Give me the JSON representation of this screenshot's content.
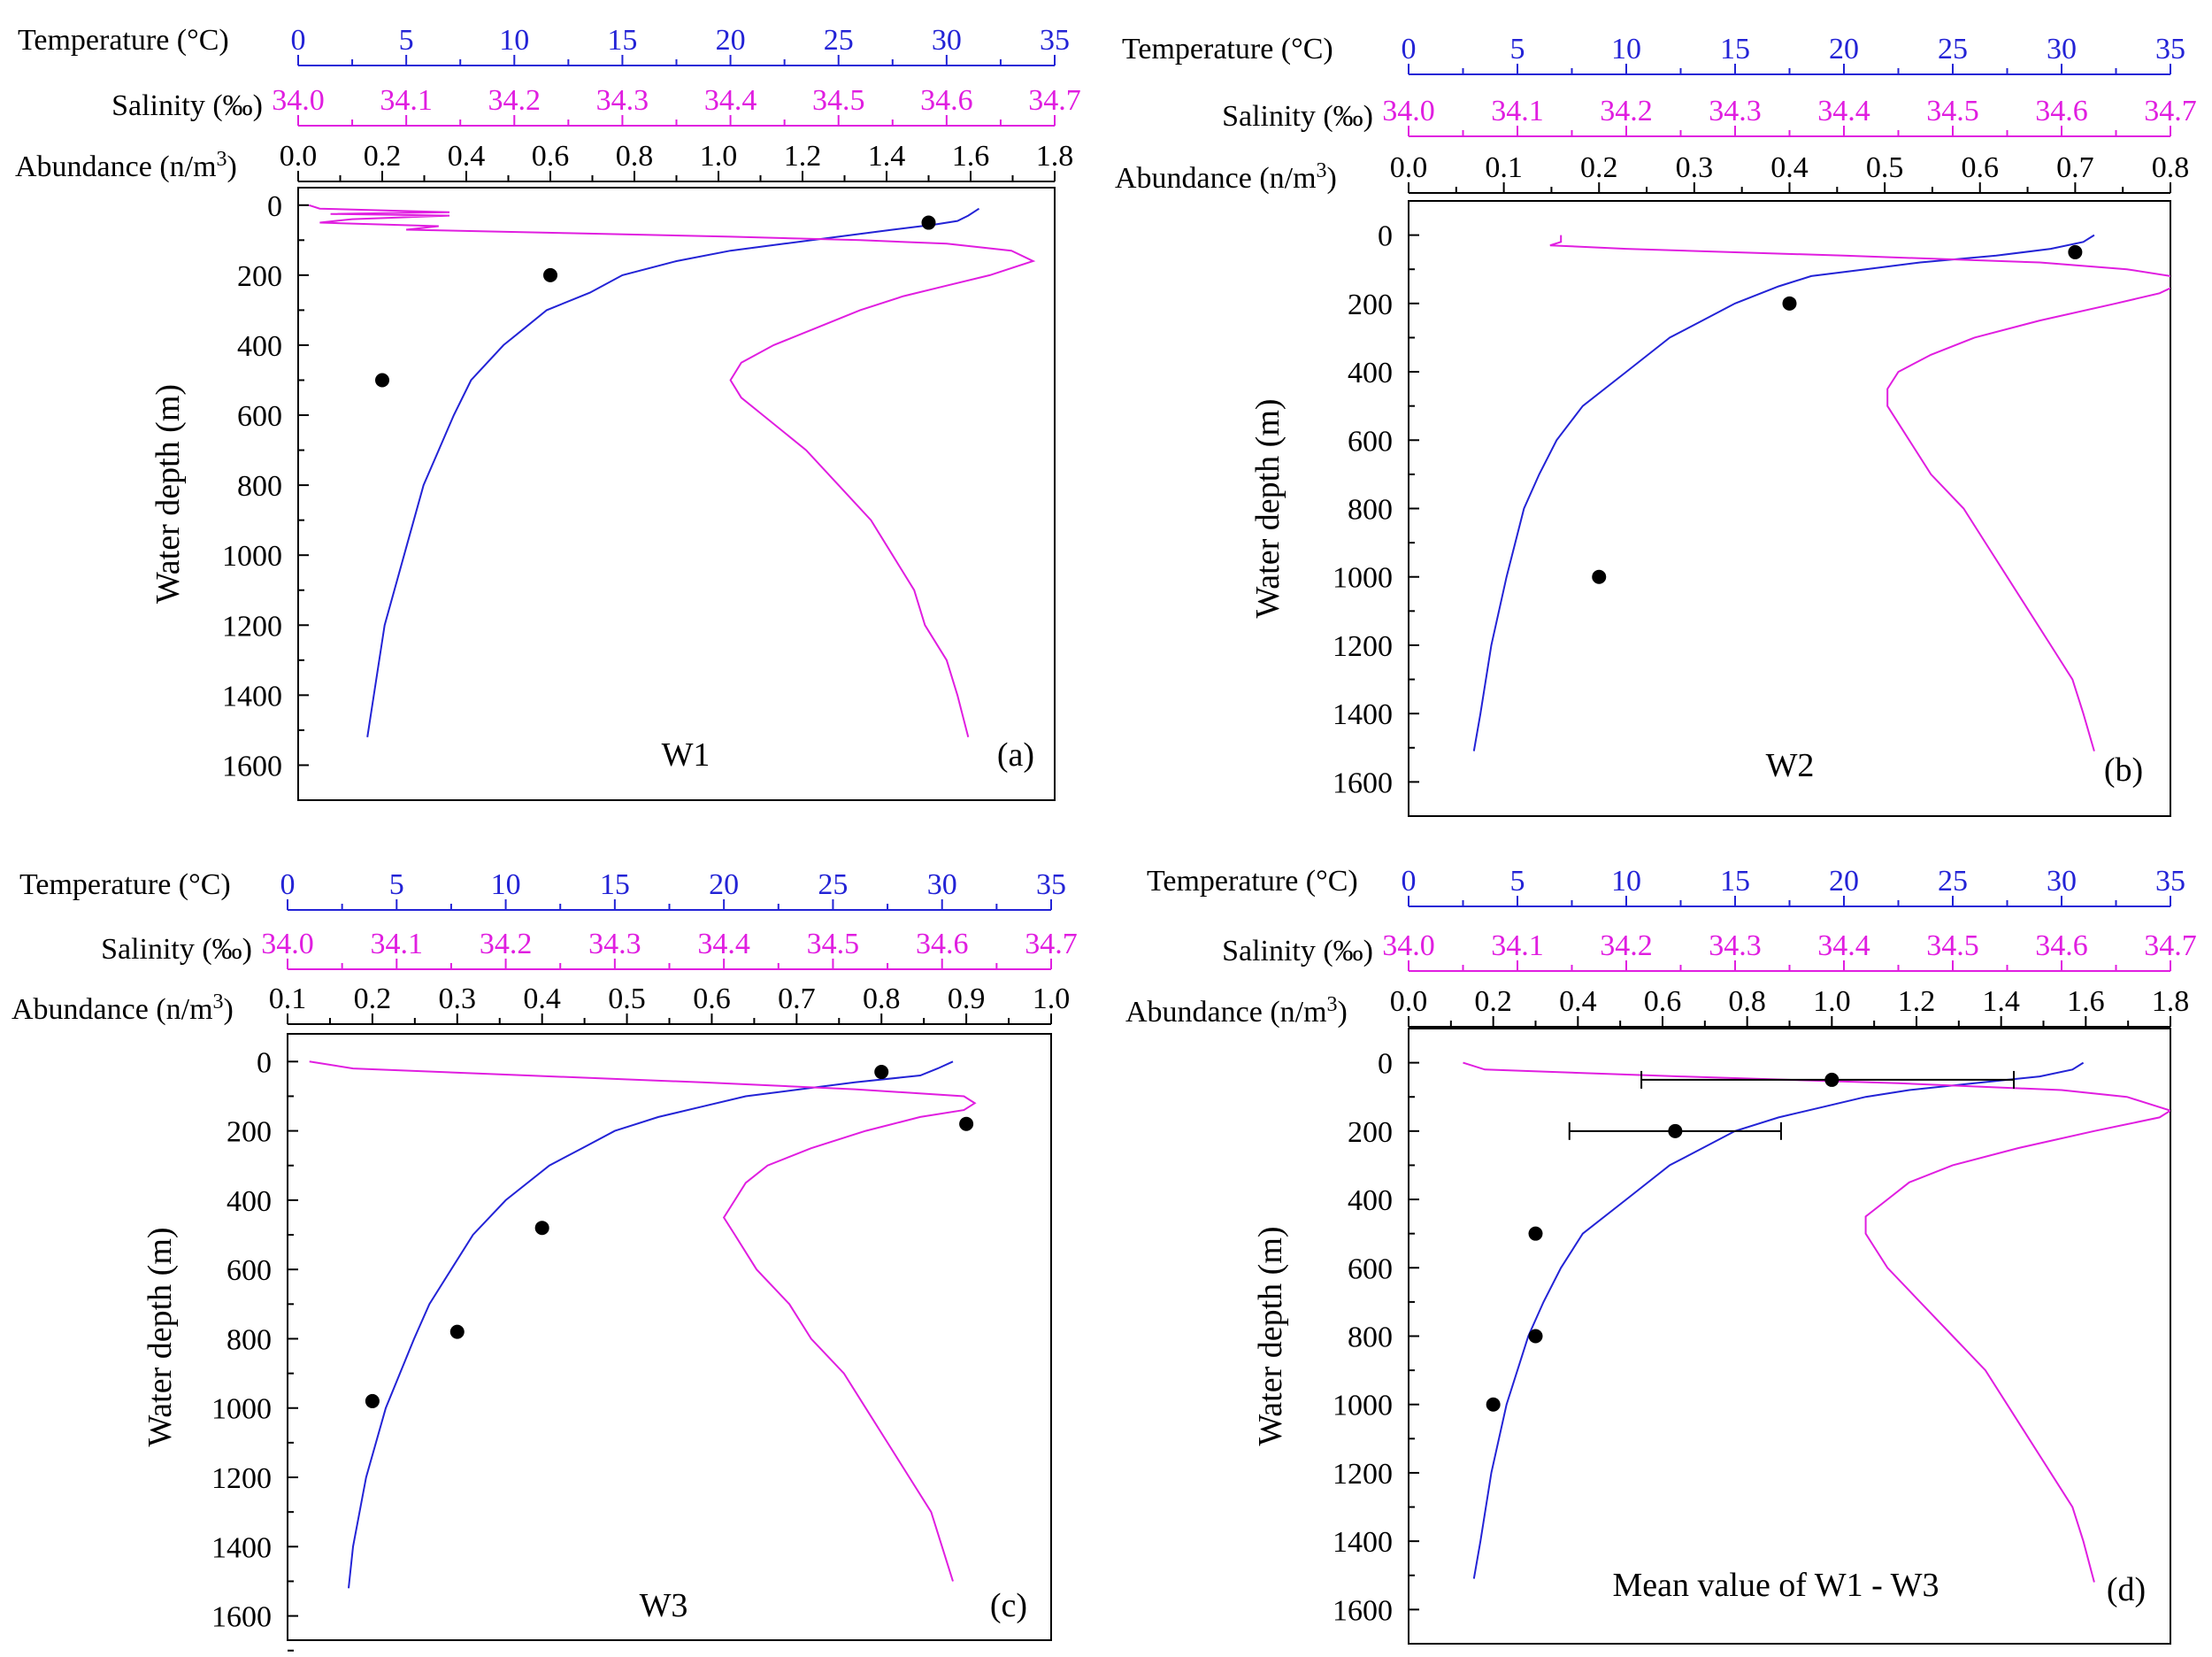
{
  "figure": {
    "colors": {
      "temperature": "#2323d6",
      "salinity": "#e01ee0",
      "abundance": "#000000"
    }
  },
  "chart_data": [
    {
      "type": "line",
      "panel_label": "(a)",
      "station": "W1",
      "axes": {
        "temperature": {
          "label": "Temperature (°C)",
          "range": [
            0,
            35
          ],
          "ticks": [
            "0",
            "5",
            "10",
            "15",
            "20",
            "25",
            "30",
            "35"
          ]
        },
        "salinity": {
          "label": "Salinity (‰)",
          "range": [
            34.0,
            34.7
          ],
          "ticks": [
            "34.0",
            "34.1",
            "34.2",
            "34.3",
            "34.4",
            "34.5",
            "34.6",
            "34.7"
          ]
        },
        "abundance": {
          "label": "Abundance (n/m",
          "sup": "3",
          "tail": ")",
          "range": [
            0,
            1.8
          ],
          "ticks": [
            "0.0",
            "0.2",
            "0.4",
            "0.6",
            "0.8",
            "1.0",
            "1.2",
            "1.4",
            "1.6",
            "1.8"
          ]
        },
        "depth": {
          "label": "Water depth (m)",
          "range": [
            1700,
            -50
          ],
          "ticks": [
            "0",
            "200",
            "400",
            "600",
            "800",
            "1000",
            "1200",
            "1400",
            "1600"
          ]
        }
      },
      "series": [
        {
          "name": "Temperature",
          "depth": [
            10,
            30,
            45,
            55,
            70,
            90,
            110,
            130,
            160,
            200,
            250,
            300,
            350,
            400,
            500,
            600,
            700,
            800,
            1000,
            1200,
            1400,
            1520
          ],
          "values": [
            31.5,
            31.0,
            30.5,
            29.5,
            27.5,
            25.0,
            22.5,
            20.0,
            17.5,
            15.0,
            13.5,
            11.5,
            10.5,
            9.5,
            8.0,
            7.2,
            6.5,
            5.8,
            4.9,
            4.0,
            3.5,
            3.2
          ]
        },
        {
          "name": "Salinity",
          "depth": [
            0,
            10,
            20,
            25,
            30,
            40,
            50,
            60,
            70,
            80,
            90,
            100,
            110,
            130,
            160,
            180,
            200,
            230,
            260,
            300,
            350,
            400,
            450,
            500,
            550,
            600,
            700,
            800,
            900,
            1000,
            1100,
            1200,
            1300,
            1400,
            1520
          ],
          "values": [
            34.01,
            34.02,
            34.14,
            34.03,
            34.14,
            34.05,
            34.02,
            34.13,
            34.1,
            34.25,
            34.4,
            34.52,
            34.6,
            34.66,
            34.68,
            34.66,
            34.64,
            34.6,
            34.56,
            34.52,
            34.48,
            34.44,
            34.41,
            34.4,
            34.41,
            34.43,
            34.47,
            34.5,
            34.53,
            34.55,
            34.57,
            34.58,
            34.6,
            34.61,
            34.62
          ]
        },
        {
          "name": "Abundance",
          "points": [
            {
              "depth": 50,
              "value": 1.5
            },
            {
              "depth": 200,
              "value": 0.6
            },
            {
              "depth": 500,
              "value": 0.2
            }
          ]
        }
      ]
    },
    {
      "type": "line",
      "panel_label": "(b)",
      "station": "W2",
      "axes": {
        "temperature": {
          "label": "Temperature (°C)",
          "range": [
            0,
            35
          ],
          "ticks": [
            "0",
            "5",
            "10",
            "15",
            "20",
            "25",
            "30",
            "35"
          ]
        },
        "salinity": {
          "label": "Salinity (‰)",
          "range": [
            34.0,
            34.7
          ],
          "ticks": [
            "34.0",
            "34.1",
            "34.2",
            "34.3",
            "34.4",
            "34.5",
            "34.6",
            "34.7"
          ]
        },
        "abundance": {
          "label": "Abundance (n/m",
          "sup": "3",
          "tail": ")",
          "range": [
            0,
            0.8
          ],
          "ticks": [
            "0.0",
            "0.1",
            "0.2",
            "0.3",
            "0.4",
            "0.5",
            "0.6",
            "0.7",
            "0.8"
          ]
        },
        "depth": {
          "label": "Water depth (m)",
          "range": [
            1700,
            -100
          ],
          "ticks": [
            "0",
            "200",
            "400",
            "600",
            "800",
            "1000",
            "1200",
            "1400",
            "1600"
          ]
        }
      },
      "series": [
        {
          "name": "Temperature",
          "depth": [
            0,
            20,
            40,
            60,
            80,
            100,
            120,
            150,
            200,
            250,
            300,
            400,
            500,
            600,
            700,
            800,
            1000,
            1200,
            1400,
            1510
          ],
          "values": [
            31.5,
            31.0,
            29.5,
            27.0,
            23.5,
            21.0,
            18.5,
            17.0,
            15.0,
            13.5,
            12.0,
            10.0,
            8.0,
            6.8,
            6.0,
            5.3,
            4.5,
            3.8,
            3.3,
            3.0
          ]
        },
        {
          "name": "Salinity",
          "depth": [
            0,
            20,
            30,
            40,
            60,
            80,
            100,
            120,
            140,
            170,
            200,
            250,
            300,
            350,
            400,
            450,
            500,
            600,
            700,
            800,
            900,
            1000,
            1100,
            1200,
            1300,
            1400,
            1510
          ],
          "values": [
            34.14,
            34.14,
            34.13,
            34.2,
            34.4,
            34.58,
            34.66,
            34.7,
            34.71,
            34.69,
            34.65,
            34.58,
            34.52,
            34.48,
            34.45,
            34.44,
            34.44,
            34.46,
            34.48,
            34.51,
            34.53,
            34.55,
            34.57,
            34.59,
            34.61,
            34.62,
            34.63
          ]
        },
        {
          "name": "Abundance",
          "points": [
            {
              "depth": 50,
              "value": 0.7
            },
            {
              "depth": 200,
              "value": 0.4
            },
            {
              "depth": 1000,
              "value": 0.2
            }
          ]
        }
      ]
    },
    {
      "type": "line",
      "panel_label": "(c)",
      "station": "W3",
      "axes": {
        "temperature": {
          "label": "Temperature (°C)",
          "range": [
            0,
            35
          ],
          "ticks": [
            "0",
            "5",
            "10",
            "15",
            "20",
            "25",
            "30",
            "35"
          ]
        },
        "salinity": {
          "label": "Salinity (‰)",
          "range": [
            34.0,
            34.7
          ],
          "ticks": [
            "34.0",
            "34.1",
            "34.2",
            "34.3",
            "34.4",
            "34.5",
            "34.6",
            "34.7"
          ]
        },
        "abundance": {
          "label": "Abundance (n/m",
          "sup": "3",
          "tail": ")",
          "range": [
            0.1,
            1.0
          ],
          "ticks": [
            "0.1",
            "0.2",
            "0.3",
            "0.4",
            "0.5",
            "0.6",
            "0.7",
            "0.8",
            "0.9",
            "1.0"
          ]
        },
        "depth": {
          "label": "Water depth (m)",
          "range": [
            1670,
            -80
          ],
          "ticks": [
            "0",
            "200",
            "400",
            "600",
            "800",
            "1000",
            "1200",
            "1400",
            "1600"
          ]
        }
      },
      "series": [
        {
          "name": "Temperature",
          "depth": [
            0,
            20,
            40,
            60,
            80,
            100,
            130,
            160,
            200,
            250,
            300,
            400,
            500,
            600,
            700,
            800,
            1000,
            1200,
            1400,
            1520
          ],
          "values": [
            30.5,
            29.8,
            29.0,
            26.0,
            23.5,
            21.0,
            19.0,
            17.0,
            15.0,
            13.5,
            12.0,
            10.0,
            8.5,
            7.5,
            6.5,
            5.8,
            4.5,
            3.6,
            3.0,
            2.8
          ]
        },
        {
          "name": "Salinity",
          "depth": [
            0,
            20,
            40,
            60,
            80,
            100,
            120,
            140,
            160,
            200,
            250,
            300,
            350,
            400,
            450,
            500,
            600,
            700,
            800,
            900,
            1000,
            1100,
            1200,
            1300,
            1400,
            1500
          ],
          "values": [
            34.02,
            34.06,
            34.22,
            34.38,
            34.52,
            34.62,
            34.63,
            34.62,
            34.58,
            34.53,
            34.48,
            34.44,
            34.42,
            34.41,
            34.4,
            34.41,
            34.43,
            34.46,
            34.48,
            34.51,
            34.53,
            34.55,
            34.57,
            34.59,
            34.6,
            34.61
          ]
        },
        {
          "name": "Abundance",
          "points": [
            {
              "depth": 30,
              "value": 0.8
            },
            {
              "depth": 180,
              "value": 0.9
            },
            {
              "depth": 480,
              "value": 0.4
            },
            {
              "depth": 780,
              "value": 0.3
            },
            {
              "depth": 980,
              "value": 0.2
            }
          ]
        }
      ]
    },
    {
      "type": "line",
      "panel_label": "(d)",
      "station": "Mean value of W1 - W3",
      "axes": {
        "temperature": {
          "label": "Temperature (°C)",
          "range": [
            0,
            35
          ],
          "ticks": [
            "0",
            "5",
            "10",
            "15",
            "20",
            "25",
            "30",
            "35"
          ]
        },
        "salinity": {
          "label": "Salinity (‰)",
          "range": [
            34.0,
            34.7
          ],
          "ticks": [
            "34.0",
            "34.1",
            "34.2",
            "34.3",
            "34.4",
            "34.5",
            "34.6",
            "34.7"
          ]
        },
        "abundance": {
          "label": "Abundance (n/m",
          "sup": "3",
          "tail": ")",
          "range": [
            0,
            1.8
          ],
          "ticks": [
            "0.0",
            "0.2",
            "0.4",
            "0.6",
            "0.8",
            "1.0",
            "1.2",
            "1.4",
            "1.6",
            "1.8"
          ]
        },
        "depth": {
          "label": "Water depth (m)",
          "range": [
            1700,
            -100
          ],
          "ticks": [
            "0",
            "200",
            "400",
            "600",
            "800",
            "1000",
            "1200",
            "1400",
            "1600"
          ]
        }
      },
      "series": [
        {
          "name": "Temperature",
          "depth": [
            0,
            20,
            40,
            60,
            80,
            100,
            130,
            160,
            200,
            250,
            300,
            400,
            500,
            600,
            700,
            800,
            1000,
            1200,
            1400,
            1510
          ],
          "values": [
            31.0,
            30.5,
            29.0,
            26.0,
            23.0,
            21.0,
            19.0,
            17.0,
            15.0,
            13.5,
            12.0,
            10.0,
            8.0,
            7.0,
            6.2,
            5.5,
            4.5,
            3.8,
            3.3,
            3.0
          ]
        },
        {
          "name": "Salinity",
          "depth": [
            0,
            20,
            40,
            60,
            80,
            100,
            120,
            140,
            160,
            200,
            250,
            300,
            350,
            400,
            450,
            500,
            600,
            700,
            800,
            900,
            1000,
            1100,
            1200,
            1300,
            1400,
            1520
          ],
          "values": [
            34.05,
            34.07,
            34.25,
            34.45,
            34.6,
            34.66,
            34.68,
            34.7,
            34.69,
            34.63,
            34.56,
            34.5,
            34.46,
            34.44,
            34.42,
            34.42,
            34.44,
            34.47,
            34.5,
            34.53,
            34.55,
            34.57,
            34.59,
            34.61,
            34.62,
            34.63
          ]
        },
        {
          "name": "Abundance",
          "points": [
            {
              "depth": 50,
              "value": 1.0,
              "err_low": 0.55,
              "err_high": 1.43
            },
            {
              "depth": 200,
              "value": 0.63,
              "err_low": 0.38,
              "err_high": 0.88
            },
            {
              "depth": 500,
              "value": 0.3
            },
            {
              "depth": 800,
              "value": 0.3
            },
            {
              "depth": 1000,
              "value": 0.2
            }
          ]
        }
      ]
    }
  ]
}
